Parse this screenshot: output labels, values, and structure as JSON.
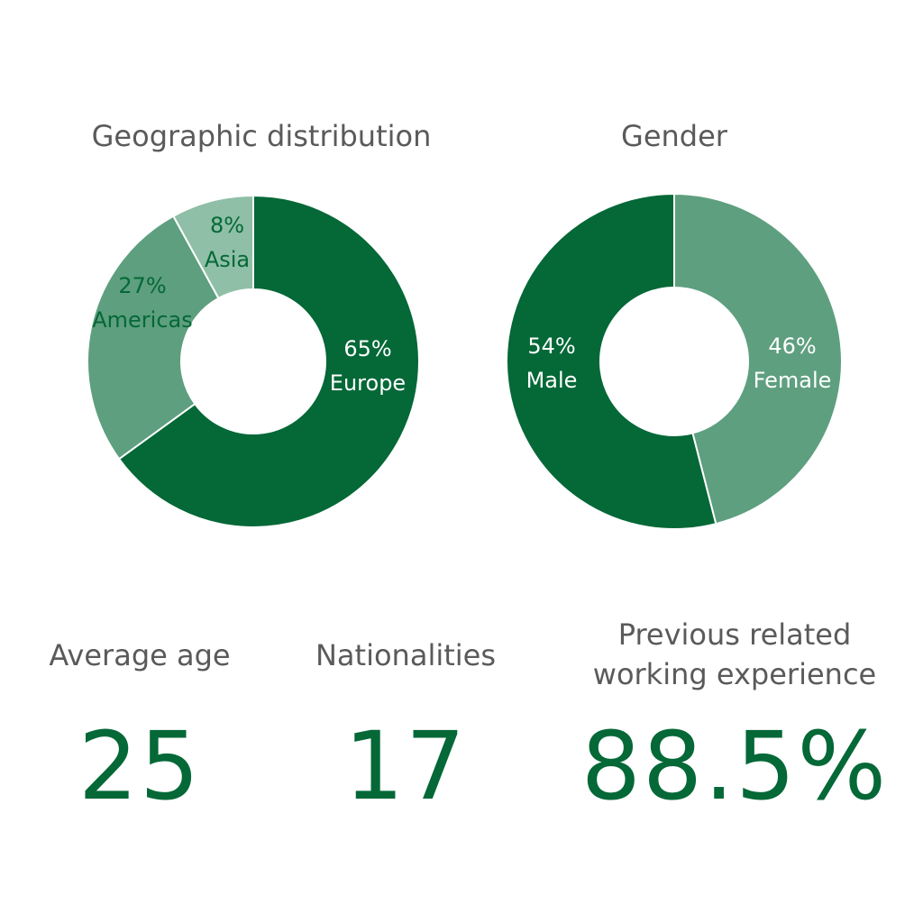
{
  "chart_data": [
    {
      "type": "pie",
      "title": "Geographic distribution",
      "slices": [
        {
          "label": "Europe",
          "value": 65,
          "pct_text": "65%",
          "color": "#046837",
          "text_color": "#ffffff"
        },
        {
          "label": "Americas",
          "value": 27,
          "pct_text": "27%",
          "color": "#5e9f7f",
          "text_color": "#046837"
        },
        {
          "label": "Asia",
          "value": 8,
          "pct_text": "8%",
          "color": "#8fbfa6",
          "text_color": "#046837"
        }
      ]
    },
    {
      "type": "pie",
      "title": "Gender",
      "slices": [
        {
          "label": "Female",
          "value": 46,
          "pct_text": "46%",
          "color": "#5e9f7f",
          "text_color": "#ffffff"
        },
        {
          "label": "Male",
          "value": 54,
          "pct_text": "54%",
          "color": "#046837",
          "text_color": "#ffffff"
        }
      ]
    }
  ],
  "stats": [
    {
      "label": "Average age",
      "value": "25"
    },
    {
      "label": "Nationalities",
      "value": "17"
    },
    {
      "label": "Previous related\nworking experience",
      "value": "88.5%"
    }
  ]
}
